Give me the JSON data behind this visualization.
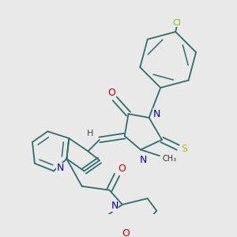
{
  "background_color": "#e9e9e9",
  "bond_color": "#2d6e6e",
  "bond_lw": 1.3,
  "atom_colors": {
    "N": "#0000cc",
    "O": "#cc0000",
    "S": "#bbbb00",
    "Cl": "#88bb00",
    "C": "#2d6e6e",
    "H": "#444444"
  }
}
